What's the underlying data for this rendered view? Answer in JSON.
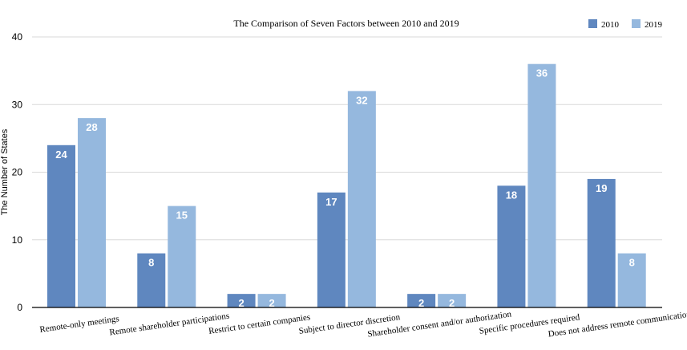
{
  "chart_data": {
    "type": "bar",
    "title": "The Comparison of Seven Factors between 2010 and 2019",
    "xlabel": "",
    "ylabel": "The Number of States",
    "ylim": [
      0,
      40
    ],
    "yticks": [
      0,
      10,
      20,
      30,
      40
    ],
    "grid": true,
    "legend_position": "top-right",
    "categories": [
      "Remote-only meetings",
      "Remote shareholder participations",
      "Restrict to certain companies",
      "Subject to director discretion",
      "Shareholder consent and/or authorization",
      "Specific procedures required",
      "Does not address remote communication"
    ],
    "series": [
      {
        "name": "2010",
        "color": "#5f87bf",
        "values": [
          24,
          8,
          2,
          17,
          2,
          18,
          19
        ]
      },
      {
        "name": "2019",
        "color": "#95b8de",
        "values": [
          28,
          15,
          2,
          32,
          2,
          36,
          8
        ]
      }
    ],
    "data_labels": true
  }
}
